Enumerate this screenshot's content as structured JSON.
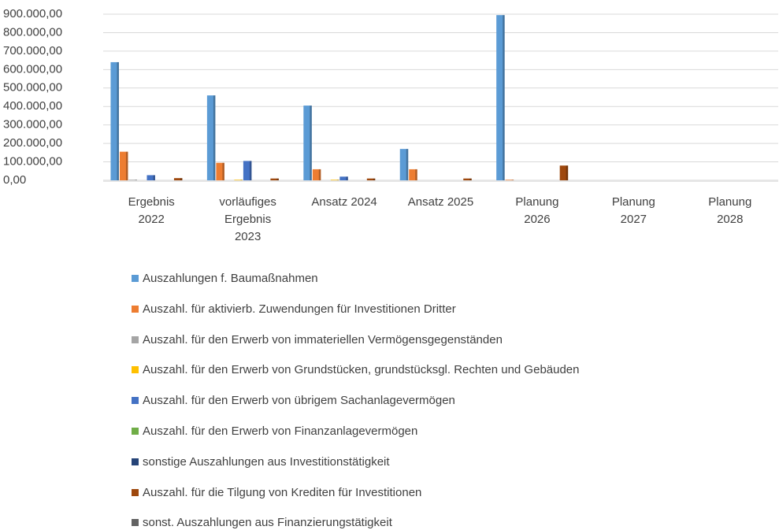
{
  "chart_data": {
    "type": "bar",
    "categories": [
      "Ergebnis 2022",
      "vorläufiges Ergebnis 2023",
      "Ansatz 2024",
      "Ansatz 2025",
      "Planung 2026",
      "Planung 2027",
      "Planung 2028"
    ],
    "ylim": [
      0,
      900000
    ],
    "yticks": [
      {
        "value": 0,
        "label": "0,00"
      },
      {
        "value": 100000,
        "label": "100.000,00"
      },
      {
        "value": 200000,
        "label": "200.000,00"
      },
      {
        "value": 300000,
        "label": "300.000,00"
      },
      {
        "value": 400000,
        "label": "400.000,00"
      },
      {
        "value": 500000,
        "label": "500.000,00"
      },
      {
        "value": 600000,
        "label": "600.000,00"
      },
      {
        "value": 700000,
        "label": "700.000,00"
      },
      {
        "value": 800000,
        "label": "800.000,00"
      },
      {
        "value": 900000,
        "label": "900.000,00"
      }
    ],
    "grid": true,
    "series": [
      {
        "name": "Auszahlungen f. Baumaßnahmen",
        "color": "#5B9BD5",
        "values": [
          640000,
          460000,
          405000,
          170000,
          895000,
          0,
          0
        ]
      },
      {
        "name": "Auszahl. für aktivierb. Zuwendungen für Investitionen Dritter",
        "color": "#ED7D31",
        "values": [
          155000,
          95000,
          60000,
          60000,
          3000,
          0,
          0
        ]
      },
      {
        "name": "Auszahl. für den Erwerb von immateriellen Vermögensgegenständen",
        "color": "#A5A5A5",
        "values": [
          3000,
          0,
          0,
          0,
          0,
          0,
          0
        ]
      },
      {
        "name": "Auszahl. für den Erwerb von Grundstücken, grundstücksgl. Rechten und Gebäuden",
        "color": "#FFC000",
        "values": [
          0,
          3000,
          3000,
          0,
          0,
          0,
          0
        ]
      },
      {
        "name": "Auszahl. für den Erwerb von übrigem Sachanlagevermögen",
        "color": "#4472C4",
        "values": [
          28000,
          105000,
          20000,
          0,
          0,
          0,
          0
        ]
      },
      {
        "name": "Auszahl. für den Erwerb von Finanzanlagevermögen",
        "color": "#70AD47",
        "values": [
          0,
          0,
          0,
          0,
          0,
          0,
          0
        ]
      },
      {
        "name": "sonstige Auszahlungen aus Investitionstätigkeit",
        "color": "#264478",
        "values": [
          0,
          0,
          0,
          0,
          0,
          0,
          0
        ]
      },
      {
        "name": "Auszahl. für die Tilgung von Krediten für Investitionen",
        "color": "#9E480E",
        "values": [
          12000,
          10000,
          10000,
          10000,
          80000,
          0,
          0
        ]
      },
      {
        "name": "sonst. Auszahlungen aus Finanzierungstätigkeit",
        "color": "#636363",
        "values": [
          0,
          0,
          0,
          0,
          0,
          0,
          0
        ]
      }
    ]
  }
}
